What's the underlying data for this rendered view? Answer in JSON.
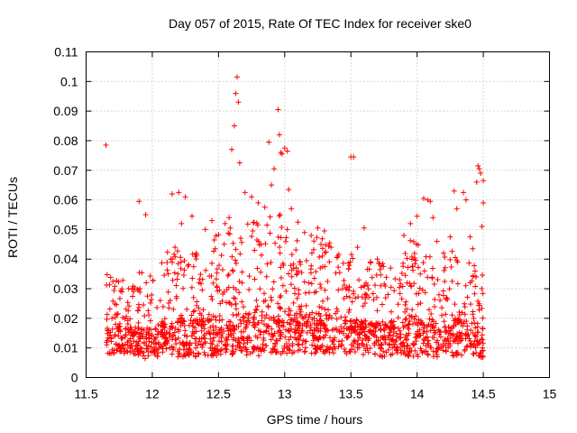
{
  "chart_data": {
    "type": "scatter",
    "title": "Day 057 of 2015, Rate Of TEC Index for receiver ske0",
    "xlabel": "GPS time / hours",
    "ylabel": "ROTI / TECUs",
    "xlim": [
      11.5,
      15
    ],
    "ylim": [
      0,
      0.11
    ],
    "x_ticks": [
      11.5,
      12,
      12.5,
      13,
      13.5,
      14,
      14.5,
      15
    ],
    "x_tick_labels": [
      "11.5",
      "12",
      "12.5",
      "13",
      "13.5",
      "14",
      "14.5",
      "15"
    ],
    "y_ticks": [
      0,
      0.01,
      0.02,
      0.03,
      0.04,
      0.05,
      0.06,
      0.07,
      0.08,
      0.09,
      0.1,
      0.11
    ],
    "y_tick_labels": [
      "0",
      "0.01",
      "0.02",
      "0.03",
      "0.04",
      "0.05",
      "0.06",
      "0.07",
      "0.08",
      "0.09",
      "0.1",
      "0.11"
    ],
    "grid": true,
    "marker": "+",
    "color": "#ff0000",
    "series": [
      {
        "points": [
          [
            11.65,
            0.0785
          ],
          [
            11.9,
            0.0595
          ],
          [
            11.95,
            0.055
          ],
          [
            12.15,
            0.062
          ],
          [
            12.2,
            0.0625
          ],
          [
            12.22,
            0.052
          ],
          [
            12.25,
            0.061
          ],
          [
            12.3,
            0.0545
          ],
          [
            12.4,
            0.05
          ],
          [
            12.45,
            0.053
          ],
          [
            12.55,
            0.052
          ],
          [
            12.58,
            0.054
          ],
          [
            12.6,
            0.077
          ],
          [
            12.62,
            0.085
          ],
          [
            12.63,
            0.096
          ],
          [
            12.64,
            0.1015
          ],
          [
            12.65,
            0.093
          ],
          [
            12.66,
            0.0725
          ],
          [
            12.7,
            0.0625
          ],
          [
            12.75,
            0.061
          ],
          [
            12.8,
            0.059
          ],
          [
            12.85,
            0.0575
          ],
          [
            12.88,
            0.0795
          ],
          [
            12.9,
            0.065
          ],
          [
            12.92,
            0.0705
          ],
          [
            12.95,
            0.0905
          ],
          [
            12.96,
            0.082
          ],
          [
            12.97,
            0.076
          ],
          [
            12.98,
            0.0755
          ],
          [
            13.0,
            0.0775
          ],
          [
            13.02,
            0.0765
          ],
          [
            13.03,
            0.0635
          ],
          [
            13.05,
            0.057
          ],
          [
            13.1,
            0.0525
          ],
          [
            13.15,
            0.049
          ],
          [
            13.2,
            0.048
          ],
          [
            13.25,
            0.0505
          ],
          [
            13.3,
            0.0495
          ],
          [
            13.35,
            0.044
          ],
          [
            13.4,
            0.041
          ],
          [
            13.5,
            0.0745
          ],
          [
            13.52,
            0.0745
          ],
          [
            13.55,
            0.044
          ],
          [
            13.6,
            0.0505
          ],
          [
            13.65,
            0.039
          ],
          [
            13.7,
            0.04
          ],
          [
            13.8,
            0.037
          ],
          [
            13.9,
            0.048
          ],
          [
            13.95,
            0.052
          ],
          [
            14.0,
            0.0545
          ],
          [
            14.05,
            0.0605
          ],
          [
            14.08,
            0.06
          ],
          [
            14.1,
            0.0595
          ],
          [
            14.12,
            0.054
          ],
          [
            14.15,
            0.046
          ],
          [
            14.2,
            0.042
          ],
          [
            14.25,
            0.0475
          ],
          [
            14.28,
            0.063
          ],
          [
            14.3,
            0.057
          ],
          [
            14.35,
            0.0625
          ],
          [
            14.37,
            0.06
          ],
          [
            14.4,
            0.0475
          ],
          [
            14.42,
            0.0435
          ],
          [
            14.45,
            0.066
          ],
          [
            14.46,
            0.0715
          ],
          [
            14.47,
            0.0705
          ],
          [
            14.48,
            0.069
          ],
          [
            14.5,
            0.0665
          ],
          [
            14.5,
            0.059
          ],
          [
            14.49,
            0.051
          ]
        ]
      }
    ],
    "dense_band": [
      [
        11.65,
        0.007,
        0.035
      ],
      [
        11.75,
        0.008,
        0.035
      ],
      [
        11.85,
        0.008,
        0.034
      ],
      [
        11.95,
        0.006,
        0.037
      ],
      [
        12.05,
        0.007,
        0.04
      ],
      [
        12.15,
        0.007,
        0.045
      ],
      [
        12.25,
        0.007,
        0.045
      ],
      [
        12.35,
        0.007,
        0.045
      ],
      [
        12.45,
        0.007,
        0.047
      ],
      [
        12.55,
        0.007,
        0.05
      ],
      [
        12.65,
        0.007,
        0.052
      ],
      [
        12.75,
        0.007,
        0.052
      ],
      [
        12.85,
        0.007,
        0.055
      ],
      [
        12.95,
        0.008,
        0.058
      ],
      [
        13.05,
        0.008,
        0.05
      ],
      [
        13.15,
        0.008,
        0.046
      ],
      [
        13.25,
        0.008,
        0.048
      ],
      [
        13.35,
        0.008,
        0.046
      ],
      [
        13.45,
        0.008,
        0.04
      ],
      [
        13.55,
        0.008,
        0.043
      ],
      [
        13.65,
        0.007,
        0.04
      ],
      [
        13.75,
        0.007,
        0.04
      ],
      [
        13.85,
        0.008,
        0.035
      ],
      [
        13.95,
        0.007,
        0.048
      ],
      [
        14.05,
        0.007,
        0.045
      ],
      [
        14.15,
        0.007,
        0.042
      ],
      [
        14.25,
        0.007,
        0.045
      ],
      [
        14.35,
        0.007,
        0.042
      ],
      [
        14.45,
        0.007,
        0.04
      ],
      [
        14.5,
        0.006,
        0.037
      ]
    ],
    "dense_band_fields": [
      "x",
      "y_min",
      "y_max"
    ],
    "x_range_of_data": [
      11.65,
      14.5
    ]
  }
}
